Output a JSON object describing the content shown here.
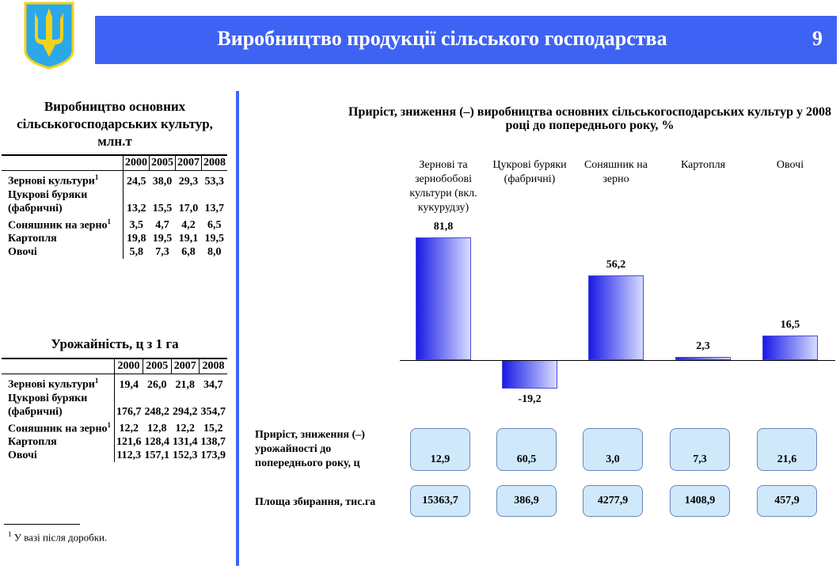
{
  "header": {
    "title": "Виробництво продукції сільського господарства",
    "page": "9"
  },
  "table1": {
    "title": "Виробництво основних сільськогосподарських культур, млн.т",
    "columns": [
      "2000",
      "2005",
      "2007",
      "2008"
    ],
    "rows": [
      {
        "label": "Зернові культури",
        "sup": "1",
        "values": [
          "24,5",
          "38,0",
          "29,3",
          "53,3"
        ]
      },
      {
        "label": "Цукрові буряки (фабричні)",
        "sup": "",
        "values": [
          "13,2",
          "15,5",
          "17,0",
          "13,7"
        ]
      },
      {
        "label": "Соняшник на зерно",
        "sup": "1",
        "values": [
          "3,5",
          "4,7",
          "4,2",
          "6,5"
        ]
      },
      {
        "label": "Картопля",
        "sup": "",
        "values": [
          "19,8",
          "19,5",
          "19,1",
          "19,5"
        ]
      },
      {
        "label": "Овочі",
        "sup": "",
        "values": [
          "5,8",
          "7,3",
          "6,8",
          "8,0"
        ]
      }
    ]
  },
  "table2": {
    "title": "Урожайність, ц з 1 га",
    "columns": [
      "2000",
      "2005",
      "2007",
      "2008"
    ],
    "rows": [
      {
        "label": "Зернові культури",
        "sup": "1",
        "values": [
          "19,4",
          "26,0",
          "21,8",
          "34,7"
        ]
      },
      {
        "label": "Цукрові буряки (фабричні)",
        "sup": "",
        "values": [
          "176,7",
          "248,2",
          "294,2",
          "354,7"
        ]
      },
      {
        "label": "Соняшник на зерно",
        "sup": "1",
        "values": [
          "12,2",
          "12,8",
          "12,2",
          "15,2"
        ]
      },
      {
        "label": "Картопля",
        "sup": "",
        "values": [
          "121,6",
          "128,4",
          "131,4",
          "138,7"
        ]
      },
      {
        "label": "Овочі",
        "sup": "",
        "values": [
          "112,3",
          "157,1",
          "152,3",
          "173,9"
        ]
      }
    ]
  },
  "footnote": {
    "mark": "1",
    "text": "У вазі після доробки."
  },
  "chart_data": {
    "type": "bar",
    "title": "Приріст, зниження (–) виробництва  основних сільськогосподарських культур у 2008 році до попереднього року, %",
    "categories": [
      "Зернові та зернобобові культури (вкл. кукурудзу)",
      "Цукрові буряки (фабричні)",
      "Соняшник на зерно",
      "Картопля",
      "Овочі"
    ],
    "values": [
      81.8,
      -19.2,
      56.2,
      2.3,
      16.5
    ],
    "value_labels": [
      "81,8",
      "-19,2",
      "56,2",
      "2,3",
      "16,5"
    ],
    "bar_color": "#1a1ae6"
  },
  "yield_row": {
    "label": "Приріст, зниження (–) урожайності до попереднього року, ц",
    "values": [
      "12,9",
      "60,5",
      "3,0",
      "7,3",
      "21,6"
    ]
  },
  "area_row": {
    "label": "Площа збирання, тис.га",
    "values": [
      "15363,7",
      "386,9",
      "4277,9",
      "1408,9",
      "457,9"
    ]
  }
}
